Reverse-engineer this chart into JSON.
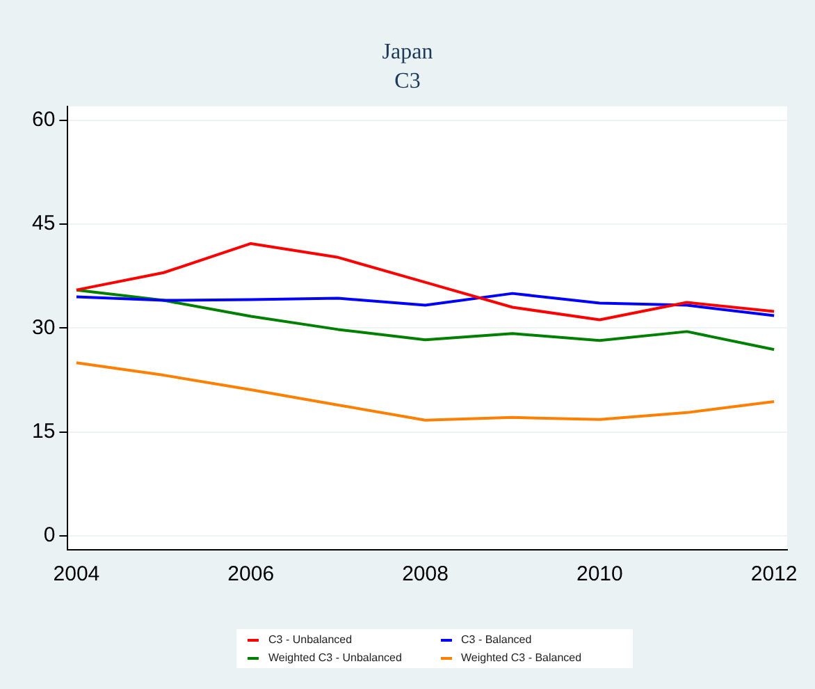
{
  "chart_data": {
    "type": "line",
    "title": "Japan",
    "subtitle": "C3",
    "x": [
      2004,
      2005,
      2006,
      2007,
      2008,
      2009,
      2010,
      2011,
      2012
    ],
    "xlim": [
      2003.9,
      2012.15
    ],
    "xticks": [
      2004,
      2006,
      2008,
      2010,
      2012
    ],
    "ylim": [
      -2,
      62
    ],
    "yticks": [
      0,
      15,
      30,
      45,
      60
    ],
    "grid": "y",
    "legend": "bottom",
    "marker": "none",
    "line_style": "solid",
    "series": [
      {
        "name": "C3 - Unbalanced",
        "color": "#ff0000",
        "values": [
          35.5,
          38,
          42.2,
          40.2,
          36.6,
          33,
          31.2,
          33.7,
          32.4
        ]
      },
      {
        "name": "C3 - Balanced",
        "color": "#0000ff",
        "values": [
          34.5,
          34,
          34.1,
          34.3,
          33.3,
          35,
          33.6,
          33.3,
          31.8
        ]
      },
      {
        "name": "Weighted C3 - Unbalanced",
        "color": "#008000",
        "values": [
          35.5,
          34,
          31.7,
          29.8,
          28.3,
          29.2,
          28.2,
          29.5,
          26.9
        ]
      },
      {
        "name": "Weighted C3 - Balanced",
        "color": "#ff8000",
        "values": [
          25,
          23.2,
          21.1,
          18.9,
          16.7,
          17.1,
          16.8,
          17.8,
          19.4
        ]
      }
    ]
  }
}
